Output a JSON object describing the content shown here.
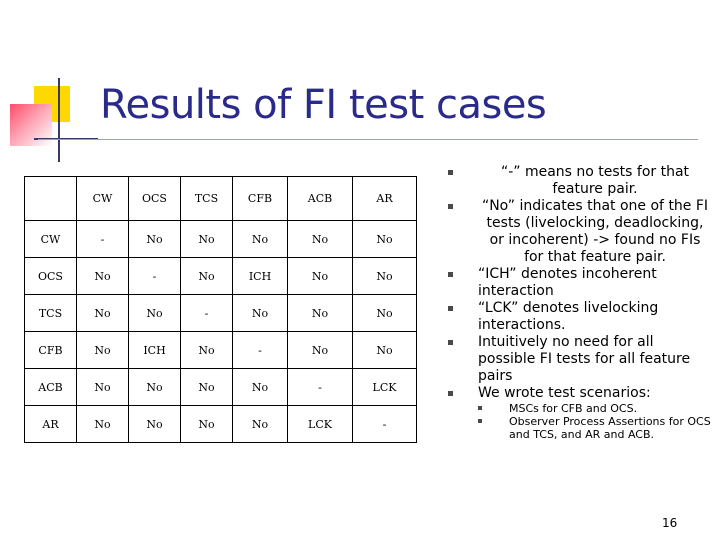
{
  "title": "Results of FI test cases",
  "table": {
    "header": [
      "",
      "CW",
      "OCS",
      "TCS",
      "CFB",
      "ACB",
      "AR"
    ],
    "rows": [
      [
        "CW",
        "-",
        "No",
        "No",
        "No",
        "No",
        "No"
      ],
      [
        "OCS",
        "No",
        "-",
        "No",
        "ICH",
        "No",
        "No"
      ],
      [
        "TCS",
        "No",
        "No",
        "-",
        "No",
        "No",
        "No"
      ],
      [
        "CFB",
        "No",
        "ICH",
        "No",
        "-",
        "No",
        "No"
      ],
      [
        "ACB",
        "No",
        "No",
        "No",
        "No",
        "-",
        "LCK"
      ],
      [
        "AR",
        "No",
        "No",
        "No",
        "No",
        "LCK",
        "-"
      ]
    ]
  },
  "bullets": [
    "“-” means no tests for that feature pair.",
    "“No” indicates that one of the FI tests (livelocking, deadlocking, or incoherent) -> found no FIs for that feature pair.",
    "“ICH” denotes incoherent interaction",
    "“LCK” denotes livelocking interactions.",
    "Intuitively no need for all possible FI tests for all feature pairs",
    "We wrote test scenarios:"
  ],
  "sub_bullets": [
    "MSCs for CFB and OCS.",
    "Observer Process Assertions for OCS and TCS, and AR and ACB."
  ],
  "page_number": "16"
}
